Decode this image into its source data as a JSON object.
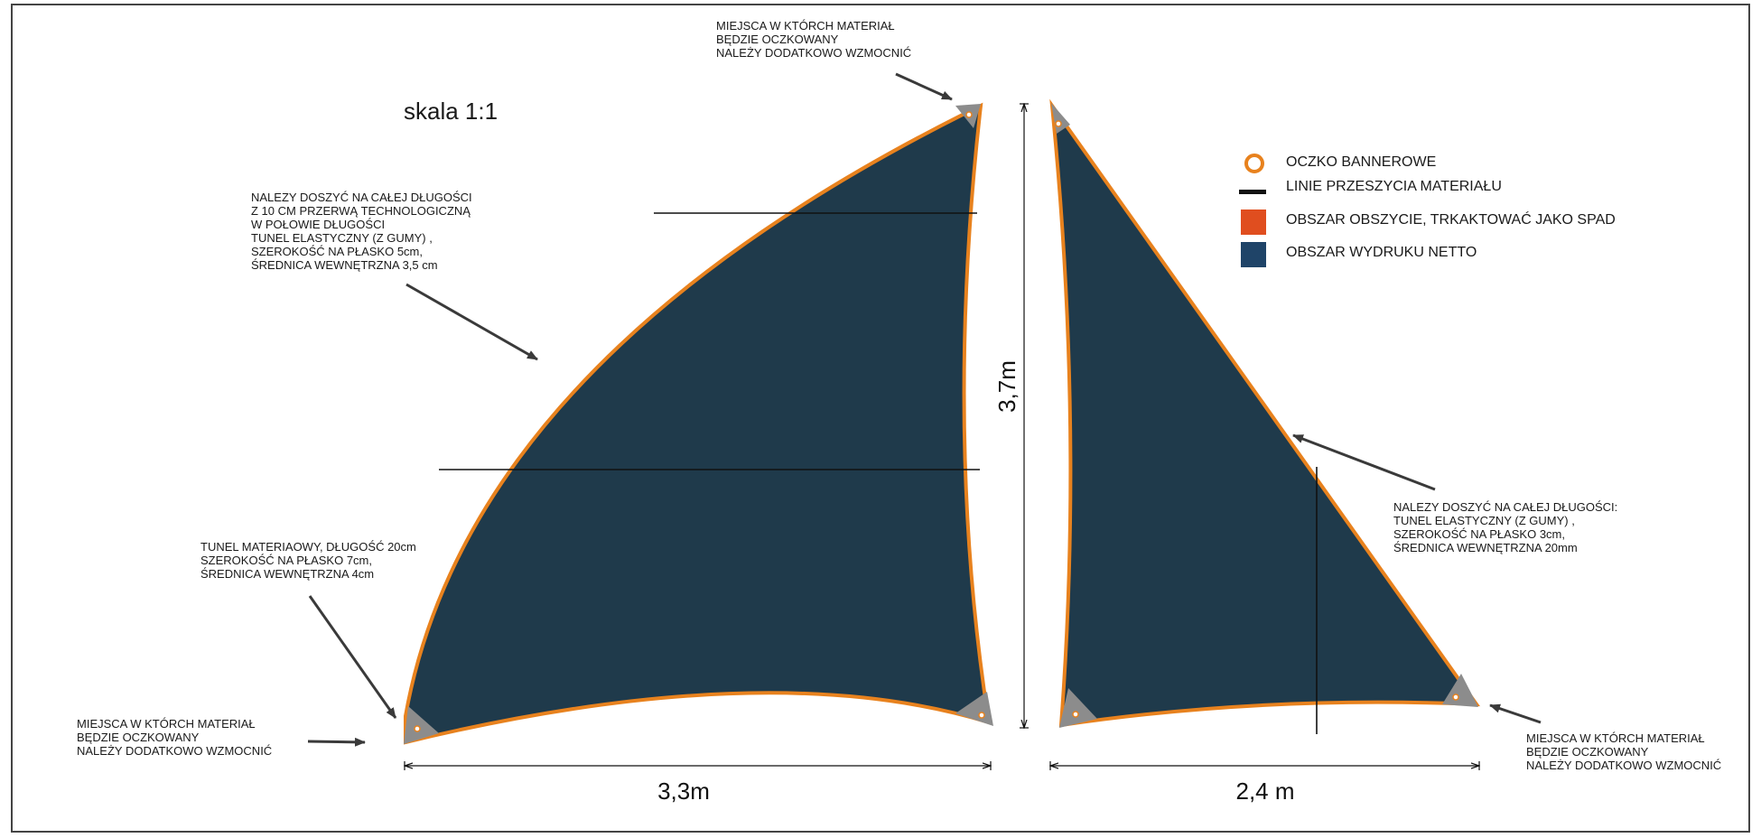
{
  "scale_label": "skala 1:1",
  "dimensions": {
    "width_left": "3,3m",
    "height": "3,7m",
    "width_right": "2,4 m"
  },
  "notes": {
    "top_center": "MIEJSCA W KTÓRCH MATERIAŁ\nBĘDZIE OCZKOWANY\nNALEŻY DODATKOWO WZMOCNIĆ",
    "left_upper": "NALEZY DOSZYĆ NA CAŁEJ DŁUGOŚCI\nZ 10 CM PRZERWĄ TECHNOLOGICZNĄ\nW POŁOWIE DŁUGOŚCI\nTUNEL ELASTYCZNY (Z GUMY) ,\nSZEROKOŚĆ NA PŁASKO 5cm,\nŚREDNICA WEWNĘTRZNA 3,5 cm",
    "left_middle": "TUNEL MATERIAOWY, DŁUGOŚĆ 20cm\nSZEROKOŚĆ NA PŁASKO 7cm,\nŚREDNICA WEWNĘTRZNA 4cm",
    "left_bottom": "MIEJSCA W KTÓRCH MATERIAŁ\nBĘDZIE OCZKOWANY\nNALEŻY DODATKOWO WZMOCNIĆ",
    "right_middle": "NALEZY DOSZYĆ NA CAŁEJ DŁUGOŚCI:\nTUNEL ELASTYCZNY (Z GUMY) ,\nSZEROKOŚĆ NA PŁASKO 3cm,\nŚREDNICA WEWNĘTRZNA 20mm",
    "right_bottom": "MIEJSCA W KTÓRCH MATERIAŁ\nBĘDZIE OCZKOWANY\nNALEŻY DODATKOWO WZMOCNIĆ"
  },
  "legend": [
    {
      "label": "OCZKO BANNEROWE",
      "symbol": "ring",
      "color": "#e8821e"
    },
    {
      "label": "LINIE PRZESZYCIA MATERIAŁU",
      "symbol": "line",
      "color": "#111111"
    },
    {
      "label": "OBSZAR OBSZYCIE, TRKAKTOWAĆ JAKO SPAD",
      "symbol": "box",
      "color": "#e04e1f"
    },
    {
      "label": "OBSZAR WYDRUKU NETTO",
      "symbol": "box",
      "color": "#1f4468"
    }
  ],
  "colors": {
    "sail_fill": "#1f3a4b",
    "seam_edge": "#e8821e",
    "corner_reinforcement": "#8c8c8c",
    "grommet": "#ffffff"
  }
}
